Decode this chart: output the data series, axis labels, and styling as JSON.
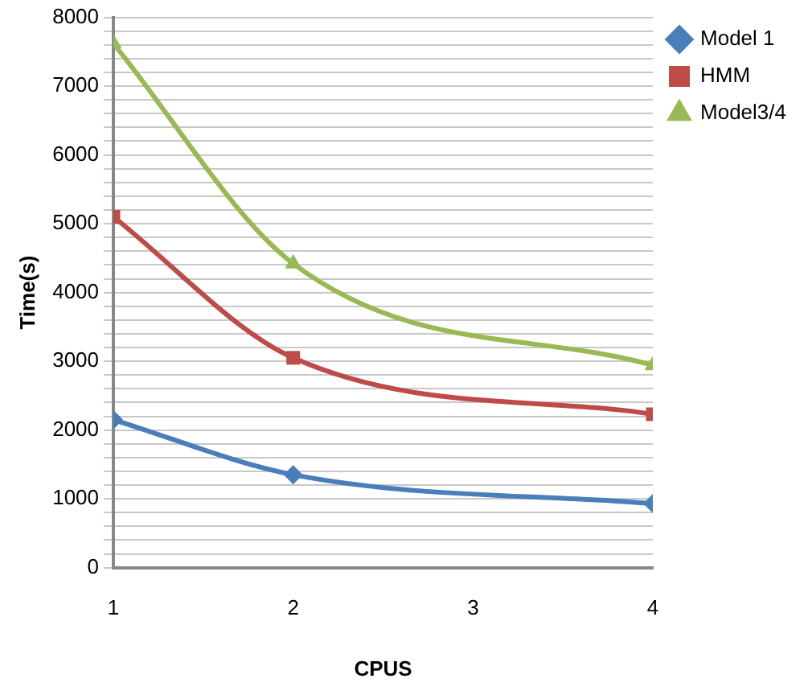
{
  "chart_data": {
    "type": "line",
    "xlabel": "CPUS",
    "ylabel": "Time(s)",
    "x": [
      1,
      2,
      4
    ],
    "xlim": [
      1,
      4
    ],
    "xticks": [
      1,
      2,
      3,
      4
    ],
    "ylim": [
      0,
      8000
    ],
    "yticks": [
      0,
      {
        "value": 200,
        "label": null
      },
      {
        "value": 400,
        "label": null
      },
      {
        "value": 600,
        "label": null
      },
      {
        "value": 800,
        "label": null
      },
      1000,
      {
        "value": 1200,
        "label": null
      },
      {
        "value": 1400,
        "label": null
      },
      {
        "value": 1600,
        "label": null
      },
      {
        "value": 1800,
        "label": null
      },
      2000,
      {
        "value": 2200,
        "label": null
      },
      {
        "value": 2400,
        "label": null
      },
      {
        "value": 2600,
        "label": null
      },
      {
        "value": 2800,
        "label": null
      },
      3000,
      {
        "value": 3200,
        "label": null
      },
      {
        "value": 3400,
        "label": null
      },
      {
        "value": 3600,
        "label": null
      },
      {
        "value": 3800,
        "label": null
      },
      4000,
      {
        "value": 4200,
        "label": null
      },
      {
        "value": 4400,
        "label": null
      },
      {
        "value": 4600,
        "label": null
      },
      {
        "value": 4800,
        "label": null
      },
      5000,
      {
        "value": 5200,
        "label": null
      },
      {
        "value": 5400,
        "label": null
      },
      {
        "value": 5600,
        "label": null
      },
      {
        "value": 5800,
        "label": null
      },
      6000,
      {
        "value": 6200,
        "label": null
      },
      {
        "value": 6400,
        "label": null
      },
      {
        "value": 6600,
        "label": null
      },
      {
        "value": 6800,
        "label": null
      },
      7000,
      {
        "value": 7200,
        "label": null
      },
      {
        "value": 7400,
        "label": null
      },
      {
        "value": 7600,
        "label": null
      },
      {
        "value": 7800,
        "label": null
      },
      8000
    ],
    "grid": "y",
    "legend": "top right",
    "line_style": "solid",
    "series": [
      {
        "name": "Model 1",
        "color": "#4a7ebb",
        "marker": "diamond",
        "values": [
          2150,
          1350,
          930
        ]
      },
      {
        "name": "HMM",
        "color": "#be4b48",
        "marker": "square",
        "values": [
          5100,
          3050,
          2230
        ]
      },
      {
        "name": "Model3/4",
        "color": "#98b954",
        "marker": "triangle",
        "values": [
          7620,
          4420,
          2940
        ]
      }
    ]
  }
}
